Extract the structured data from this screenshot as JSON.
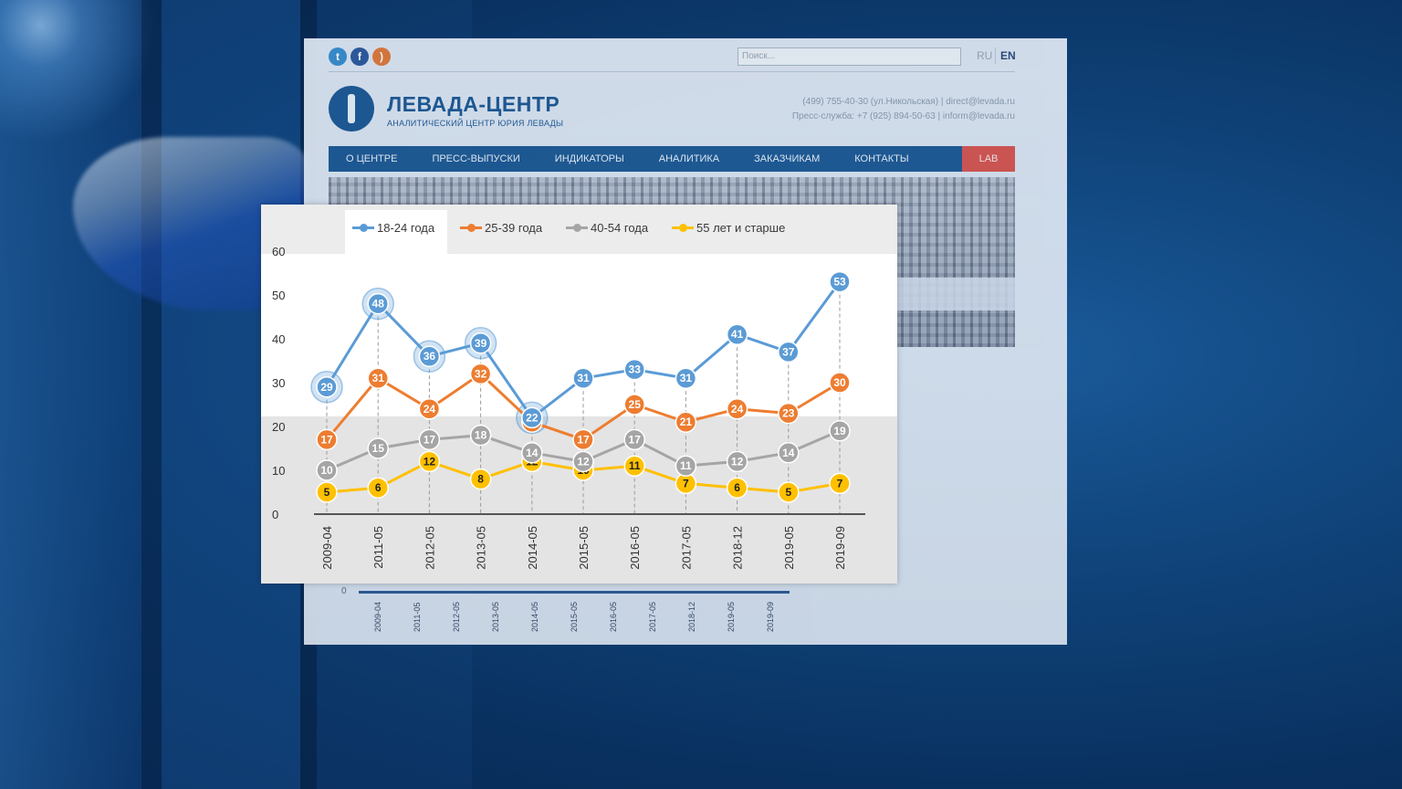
{
  "site": {
    "social_icons": [
      "twitter-icon",
      "facebook-icon",
      "rss-icon"
    ],
    "search_placeholder": "Поиск...",
    "lang_ru": "RU",
    "lang_en": "EN",
    "logo_title": "ЛЕВАДА-ЦЕНТР",
    "logo_subtitle": "АНАЛИТИЧЕСКИЙ ЦЕНТР ЮРИЯ ЛЕВАДЫ",
    "contact_line1": "(499) 755-40-30 (ул.Никольская) | direct@levada.ru",
    "contact_line2": "Пресс-служба: +7 (925) 894-50-63 | inform@levada.ru",
    "nav": [
      "О ЦЕНТРЕ",
      "ПРЕСС-ВЫПУСКИ",
      "ИНДИКАТОРЫ",
      "АНАЛИТИКА",
      "ЗАКАЗЧИКАМ",
      "КОНТАКТЫ"
    ],
    "nav_lab": "LAB",
    "bg_axis_zero": "0",
    "bg_ticks": [
      "2009-04",
      "2011-05",
      "2012-05",
      "2013-05",
      "2014-05",
      "2015-05",
      "2016-05",
      "2017-05",
      "2018-12",
      "2019-05",
      "2019-09"
    ]
  },
  "colors": {
    "s1": "#5b9bd5",
    "s2": "#ed7d31",
    "s3": "#a5a5a5",
    "s4": "#ffc000",
    "nav_bg": "#1f5a94",
    "lab_bg": "#d9564f"
  },
  "chart_data": {
    "type": "line",
    "title": "",
    "xlabel": "",
    "ylabel": "",
    "ylim": [
      0,
      60
    ],
    "yticks": [
      0,
      10,
      20,
      30,
      40,
      50,
      60
    ],
    "legend": "top",
    "grid": false,
    "x": [
      "2009-04",
      "2011-05",
      "2012-05",
      "2013-05",
      "2014-05",
      "2015-05",
      "2016-05",
      "2017-05",
      "2018-12",
      "2019-05",
      "2019-09"
    ],
    "series": [
      {
        "name": "18-24 года",
        "color": "#5b9bd5",
        "values": [
          29,
          48,
          36,
          39,
          22,
          31,
          33,
          31,
          41,
          37,
          53
        ]
      },
      {
        "name": "25-39 года",
        "color": "#ed7d31",
        "values": [
          17,
          31,
          24,
          32,
          21,
          17,
          25,
          21,
          24,
          23,
          30
        ]
      },
      {
        "name": "40-54 года",
        "color": "#a5a5a5",
        "values": [
          10,
          15,
          17,
          18,
          14,
          12,
          17,
          11,
          12,
          14,
          19
        ]
      },
      {
        "name": "55 лет и старше",
        "color": "#ffc000",
        "values": [
          5,
          6,
          12,
          8,
          12,
          10,
          11,
          7,
          6,
          5,
          7
        ]
      }
    ]
  }
}
